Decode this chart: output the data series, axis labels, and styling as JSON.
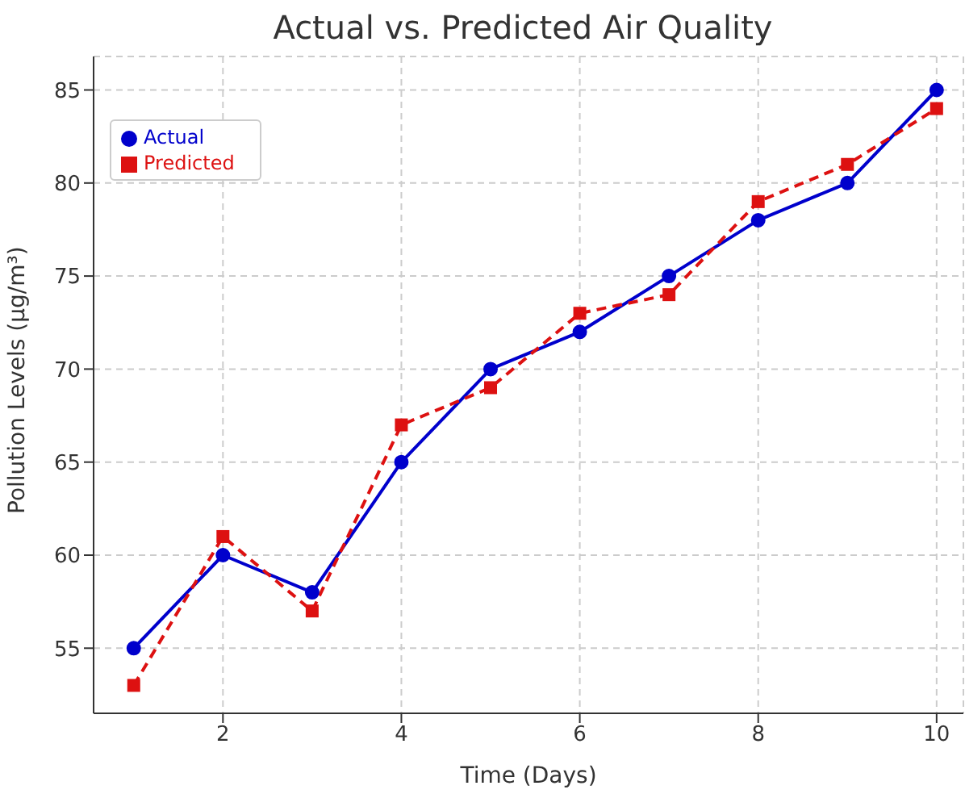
{
  "chart_data": {
    "type": "line",
    "title": "Actual vs. Predicted Air Quality",
    "xlabel": "Time (Days)",
    "ylabel": "Pollution Levels (µg/m³)",
    "x": [
      1,
      2,
      3,
      4,
      5,
      6,
      7,
      8,
      9,
      10
    ],
    "series": [
      {
        "name": "Actual",
        "color": "#0000cc",
        "marker": "circle",
        "line_style": "solid",
        "values": [
          55,
          60,
          58,
          65,
          70,
          72,
          75,
          78,
          80,
          85
        ]
      },
      {
        "name": "Predicted",
        "color": "#dd1111",
        "marker": "square",
        "line_style": "dashed",
        "values": [
          53,
          61,
          57,
          67,
          69,
          73,
          74,
          79,
          81,
          84
        ]
      }
    ],
    "xlim": [
      0.55,
      10.3
    ],
    "xticks": [
      2,
      4,
      6,
      8,
      10
    ],
    "ylim": [
      51.5,
      86.8
    ],
    "yticks": [
      55,
      60,
      65,
      70,
      75,
      80,
      85
    ],
    "grid": true,
    "legend": "top left"
  }
}
